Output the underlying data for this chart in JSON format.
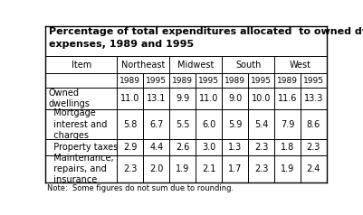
{
  "title_line1": "Percentage of total expenditures allocated  to owned dwelling",
  "title_line2": "expenses, 1989 and 1995",
  "note": "Note:  Some figures do not sum due to rounding.",
  "regions": [
    "Northeast",
    "Midwest",
    "South",
    "West"
  ],
  "years": [
    "1989",
    "1995",
    "1989",
    "1995",
    "1989",
    "1995",
    "1989",
    "1995"
  ],
  "items": [
    "Owned\ndwellings",
    "  Mortgage\n  interest and\n  charges",
    "  Property taxes",
    "  Maintenance,\n  repairs, and\n  insurance"
  ],
  "data": [
    [
      11.0,
      13.1,
      9.9,
      11.0,
      9.0,
      10.0,
      11.6,
      13.3
    ],
    [
      5.8,
      6.7,
      5.5,
      6.0,
      5.9,
      5.4,
      7.9,
      8.6
    ],
    [
      2.9,
      4.4,
      2.6,
      3.0,
      1.3,
      2.3,
      1.8,
      2.3
    ],
    [
      2.3,
      2.0,
      1.9,
      2.1,
      1.7,
      2.3,
      1.9,
      2.4
    ]
  ],
  "bg_color": "#ffffff",
  "border_color": "#000000",
  "font_size": 7.0,
  "title_font_size": 8.0
}
